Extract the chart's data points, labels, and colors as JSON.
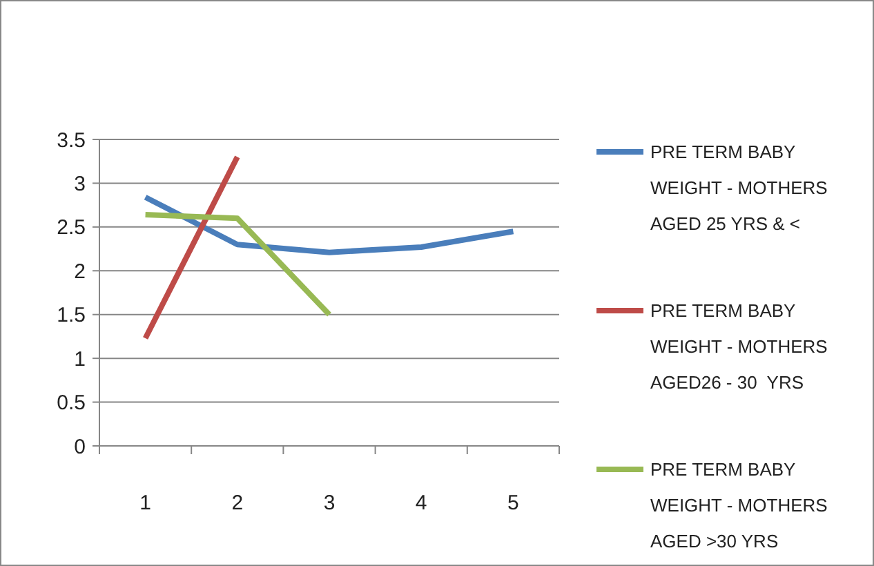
{
  "chart_data": {
    "type": "line",
    "categories": [
      "1",
      "2",
      "3",
      "4",
      "5"
    ],
    "ylim": [
      0,
      3.5
    ],
    "yticks": [
      0,
      0.5,
      1,
      1.5,
      2,
      2.5,
      3,
      3.5
    ],
    "grid": "y",
    "legend": "right",
    "marker": "none",
    "series": [
      {
        "name": "PRE TERM BABY WEIGHT - MOTHERS AGED 25 YRS & <",
        "color": "#4a7ebb",
        "values": [
          2.84,
          2.3,
          2.21,
          2.27,
          2.45
        ]
      },
      {
        "name": "PRE TERM BABY WEIGHT - MOTHERS AGED26 - 30  YRS",
        "color": "#be4b48",
        "values": [
          1.23,
          3.3,
          null,
          null,
          null
        ]
      },
      {
        "name": "PRE TERM BABY WEIGHT - MOTHERS AGED >30 YRS",
        "color": "#98b954",
        "values": [
          2.64,
          2.6,
          1.5,
          null,
          null
        ]
      }
    ]
  }
}
